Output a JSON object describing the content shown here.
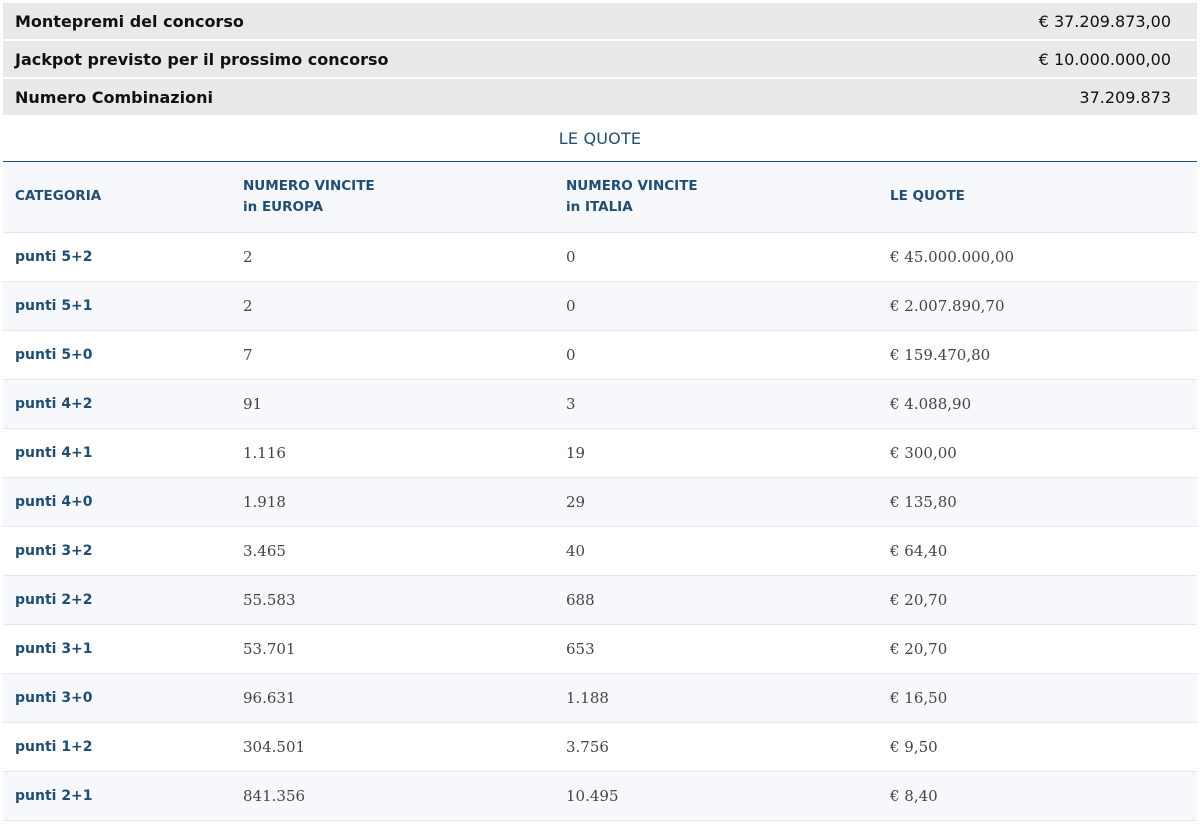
{
  "summary": [
    {
      "label": "Montepremi del concorso",
      "value": "€ 37.209.873,00"
    },
    {
      "label": "Jackpot previsto per il prossimo concorso",
      "value": "€ 10.000.000,00"
    },
    {
      "label": "Numero Combinazioni",
      "value": "37.209.873"
    }
  ],
  "quote": {
    "title": "LE QUOTE",
    "headers": [
      {
        "line1": "CATEGORIA",
        "line2": ""
      },
      {
        "line1": "NUMERO VINCITE",
        "line2": "in EUROPA"
      },
      {
        "line1": "NUMERO VINCITE",
        "line2": "in ITALIA"
      },
      {
        "line1": "LE QUOTE",
        "line2": ""
      }
    ],
    "rows": [
      {
        "categoria": "punti 5+2",
        "europa": "2",
        "italia": "0",
        "quota": "€ 45.000.000,00"
      },
      {
        "categoria": "punti 5+1",
        "europa": "2",
        "italia": "0",
        "quota": "€ 2.007.890,70"
      },
      {
        "categoria": "punti 5+0",
        "europa": "7",
        "italia": "0",
        "quota": "€ 159.470,80"
      },
      {
        "categoria": "punti 4+2",
        "europa": "91",
        "italia": "3",
        "quota": "€ 4.088,90"
      },
      {
        "categoria": "punti 4+1",
        "europa": "1.116",
        "italia": "19",
        "quota": "€ 300,00"
      },
      {
        "categoria": "punti 4+0",
        "europa": "1.918",
        "italia": "29",
        "quota": "€ 135,80"
      },
      {
        "categoria": "punti 3+2",
        "europa": "3.465",
        "italia": "40",
        "quota": "€ 64,40"
      },
      {
        "categoria": "punti 2+2",
        "europa": "55.583",
        "italia": "688",
        "quota": "€ 20,70"
      },
      {
        "categoria": "punti 3+1",
        "europa": "53.701",
        "italia": "653",
        "quota": "€ 20,70"
      },
      {
        "categoria": "punti 3+0",
        "europa": "96.631",
        "italia": "1.188",
        "quota": "€ 16,50"
      },
      {
        "categoria": "punti 1+2",
        "europa": "304.501",
        "italia": "3.756",
        "quota": "€ 9,50"
      },
      {
        "categoria": "punti 2+1",
        "europa": "841.356",
        "italia": "10.495",
        "quota": "€ 8,40"
      }
    ]
  }
}
